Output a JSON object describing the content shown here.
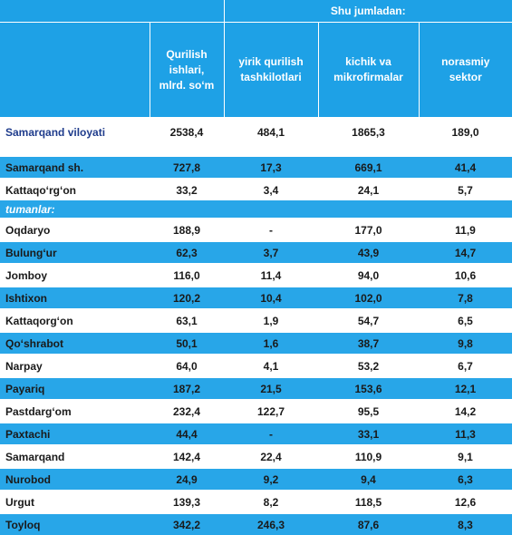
{
  "header": {
    "group_label": "Shu jumladan:",
    "columns": [
      "",
      "Qurilish ishlari, mlrd. so‘m",
      "yirik qurilish tashkilotlari",
      "kichik va mikrofirmalar",
      "norasmiy sektor"
    ]
  },
  "total_row": {
    "name": "Samarqand viloyati",
    "values": [
      "2538,4",
      "484,1",
      "1865,3",
      "189,0"
    ]
  },
  "city_rows": [
    {
      "name": "Samarqand  sh.",
      "values": [
        "727,8",
        "17,3",
        "669,1",
        "41,4"
      ]
    },
    {
      "name": "Kattaqo‘rg‘on",
      "values": [
        "33,2",
        "3,4",
        "24,1",
        "5,7"
      ]
    }
  ],
  "section_label": "tumanlar:",
  "district_rows": [
    {
      "name": "Oqdaryo",
      "values": [
        "188,9",
        "-",
        "177,0",
        "11,9"
      ]
    },
    {
      "name": "Bulung‘ur",
      "values": [
        "62,3",
        "3,7",
        "43,9",
        "14,7"
      ]
    },
    {
      "name": "Jomboy",
      "values": [
        "116,0",
        "11,4",
        "94,0",
        "10,6"
      ]
    },
    {
      "name": "Ishtixon",
      "values": [
        "120,2",
        "10,4",
        "102,0",
        "7,8"
      ]
    },
    {
      "name": "Kattaqorg‘on",
      "values": [
        "63,1",
        "1,9",
        "54,7",
        "6,5"
      ]
    },
    {
      "name": "Qo‘shrabot",
      "values": [
        "50,1",
        "1,6",
        "38,7",
        "9,8"
      ]
    },
    {
      "name": "Narpay",
      "values": [
        "64,0",
        "4,1",
        "53,2",
        "6,7"
      ]
    },
    {
      "name": "Payariq",
      "values": [
        "187,2",
        "21,5",
        "153,6",
        "12,1"
      ]
    },
    {
      "name": "Pastdarg‘om",
      "values": [
        "232,4",
        "122,7",
        "95,5",
        "14,2"
      ]
    },
    {
      "name": "Paxtachi",
      "values": [
        "44,4",
        "-",
        "33,1",
        "11,3"
      ]
    },
    {
      "name": "Samarqand",
      "values": [
        "142,4",
        "22,4",
        "110,9",
        "9,1"
      ]
    },
    {
      "name": "Nurobod",
      "values": [
        "24,9",
        "9,2",
        "9,4",
        "6,3"
      ]
    },
    {
      "name": "Urgut",
      "values": [
        "139,3",
        "8,2",
        "118,5",
        "12,6"
      ]
    },
    {
      "name": "Toyloq",
      "values": [
        "342,2",
        "246,3",
        "87,6",
        "8,3"
      ]
    }
  ],
  "colors": {
    "header_blue": "#1ea1e6",
    "row_blue": "#28a6e8",
    "total_text": "#1f3c8c"
  }
}
